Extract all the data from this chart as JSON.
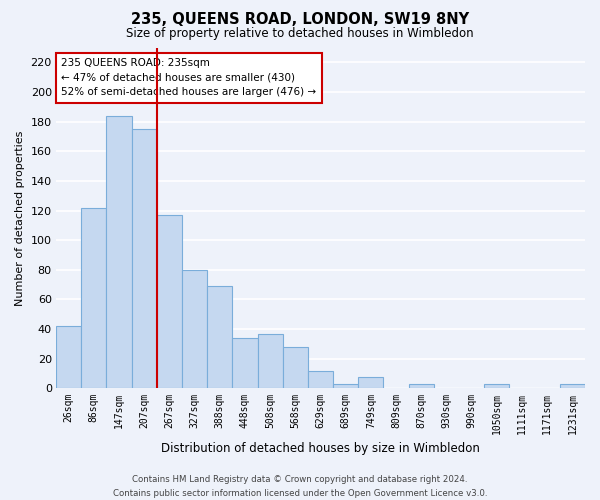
{
  "title": "235, QUEENS ROAD, LONDON, SW19 8NY",
  "subtitle": "Size of property relative to detached houses in Wimbledon",
  "xlabel": "Distribution of detached houses by size in Wimbledon",
  "ylabel": "Number of detached properties",
  "bar_labels": [
    "26sqm",
    "86sqm",
    "147sqm",
    "207sqm",
    "267sqm",
    "327sqm",
    "388sqm",
    "448sqm",
    "508sqm",
    "568sqm",
    "629sqm",
    "689sqm",
    "749sqm",
    "809sqm",
    "870sqm",
    "930sqm",
    "990sqm",
    "1050sqm",
    "1111sqm",
    "1171sqm",
    "1231sqm"
  ],
  "bar_values": [
    42,
    122,
    184,
    175,
    117,
    80,
    69,
    34,
    37,
    28,
    12,
    3,
    8,
    0,
    3,
    0,
    0,
    3,
    0,
    0,
    3
  ],
  "bar_color": "#c5d8f0",
  "bar_edge_color": "#7aadda",
  "vline_x_index": 3,
  "vline_color": "#cc0000",
  "annotation_line1": "235 QUEENS ROAD: 235sqm",
  "annotation_line2": "← 47% of detached houses are smaller (430)",
  "annotation_line3": "52% of semi-detached houses are larger (476) →",
  "annotation_box_color": "#ffffff",
  "annotation_box_edge": "#cc0000",
  "ylim": [
    0,
    230
  ],
  "yticks": [
    0,
    20,
    40,
    60,
    80,
    100,
    120,
    140,
    160,
    180,
    200,
    220
  ],
  "footer_line1": "Contains HM Land Registry data © Crown copyright and database right 2024.",
  "footer_line2": "Contains public sector information licensed under the Open Government Licence v3.0.",
  "background_color": "#eef2fa",
  "plot_bg_color": "#eef2fa",
  "grid_color": "#ffffff"
}
